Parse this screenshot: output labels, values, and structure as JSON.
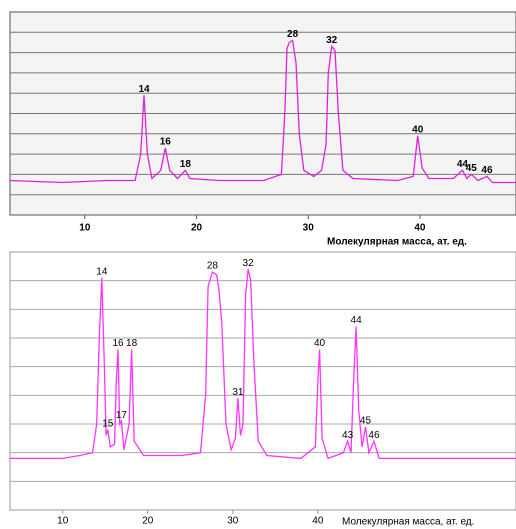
{
  "chart_data": [
    {
      "type": "line",
      "color": "#e020e0",
      "xlabel": "Молекулярная масса, ат. ед.",
      "xlim": [
        3.3,
        48.6
      ],
      "xticks": [
        10,
        20,
        30,
        40
      ],
      "ylim": [
        0,
        10
      ],
      "grid_lines": [
        1,
        2,
        3,
        4,
        5,
        6,
        7,
        8,
        9
      ],
      "x": [
        3.3,
        8,
        12,
        14.5,
        15.0,
        15.3,
        15.6,
        16.0,
        16.8,
        17.2,
        17.6,
        18.3,
        19.0,
        19.4,
        22,
        26,
        27.6,
        27.9,
        28.1,
        28.3,
        28.6,
        28.9,
        29.2,
        29.6,
        30.5,
        31.2,
        31.6,
        31.8,
        32.1,
        32.4,
        32.7,
        33.1,
        34,
        38,
        39.4,
        39.8,
        40.2,
        40.8,
        43,
        43.8,
        44.2,
        44.6,
        45.2,
        46.0,
        46.5,
        48.6
      ],
      "values": [
        1.7,
        1.6,
        1.7,
        1.7,
        3,
        5.9,
        3,
        1.8,
        2.2,
        3.3,
        2.2,
        1.8,
        2.2,
        1.8,
        1.7,
        1.7,
        2.0,
        5,
        8.2,
        8.5,
        8.6,
        7.5,
        4,
        2.2,
        1.9,
        2.2,
        3.5,
        7,
        8.3,
        8.1,
        5,
        2.2,
        1.8,
        1.7,
        1.9,
        3.9,
        2.3,
        1.8,
        1.8,
        2.2,
        1.8,
        2.0,
        1.7,
        1.9,
        1.6,
        1.6
      ],
      "annotations": [
        {
          "text": "14",
          "x": 15.3,
          "y": 5.9
        },
        {
          "text": "16",
          "x": 17.2,
          "y": 3.3
        },
        {
          "text": "18",
          "x": 19.0,
          "y": 2.2
        },
        {
          "text": "28",
          "x": 28.6,
          "y": 8.6
        },
        {
          "text": "32",
          "x": 32.1,
          "y": 8.3
        },
        {
          "text": "40",
          "x": 39.8,
          "y": 3.9
        },
        {
          "text": "44",
          "x": 43.8,
          "y": 2.2
        },
        {
          "text": "45",
          "x": 44.6,
          "y": 2.0
        },
        {
          "text": "46",
          "x": 46.0,
          "y": 1.9
        }
      ]
    },
    {
      "type": "line",
      "color": "#ff33ff",
      "xlabel": "Молекулярная масса, ат. ед.",
      "xlim": [
        3.8,
        63.3
      ],
      "xticks": [
        10,
        20,
        30,
        40
      ],
      "ylim": [
        0,
        9
      ],
      "grid_lines": [
        1,
        2,
        3,
        4,
        5,
        6,
        7,
        8
      ],
      "x": [
        3.8,
        10,
        12,
        13.5,
        14.0,
        14.3,
        14.6,
        14.9,
        15.1,
        15.3,
        15.6,
        16.1,
        16.3,
        16.5,
        16.7,
        16.9,
        17.2,
        17.8,
        18.1,
        18.4,
        19.5,
        24,
        26.2,
        26.8,
        27.1,
        27.6,
        28.1,
        28.4,
        28.7,
        29.2,
        29.8,
        30.3,
        30.6,
        30.9,
        31.2,
        31.5,
        31.8,
        32.1,
        32.5,
        33,
        34,
        38,
        39.7,
        40.0,
        40.2,
        40.5,
        41.2,
        43,
        43.5,
        43.9,
        44.2,
        44.5,
        44.8,
        45.2,
        45.6,
        46.0,
        46.6,
        47.2,
        55,
        63.3
      ],
      "values": [
        1.8,
        1.8,
        1.9,
        2.0,
        3,
        6,
        8.1,
        5,
        2.6,
        2.8,
        2.2,
        2.3,
        4.5,
        5.6,
        3,
        3.1,
        2.1,
        3,
        5.6,
        2.4,
        1.9,
        1.9,
        2.0,
        4,
        7.8,
        8.3,
        8.2,
        7.6,
        6.5,
        3,
        2.1,
        2.5,
        3.9,
        2.6,
        3,
        7.5,
        8.4,
        8.0,
        5,
        2.4,
        1.9,
        1.8,
        2.2,
        4.5,
        5.6,
        2.5,
        1.8,
        2.0,
        2.4,
        2.0,
        4.5,
        6.4,
        3.5,
        2.2,
        2.9,
        2.0,
        2.4,
        1.8,
        1.8,
        1.8
      ],
      "annotations": [
        {
          "text": "14",
          "x": 14.6,
          "y": 8.1
        },
        {
          "text": "15",
          "x": 15.3,
          "y": 2.8
        },
        {
          "text": "16",
          "x": 16.5,
          "y": 5.6
        },
        {
          "text": "17",
          "x": 16.9,
          "y": 3.1
        },
        {
          "text": "18",
          "x": 18.1,
          "y": 5.6
        },
        {
          "text": "28",
          "x": 27.6,
          "y": 8.3
        },
        {
          "text": "31",
          "x": 30.6,
          "y": 3.9
        },
        {
          "text": "32",
          "x": 31.8,
          "y": 8.4
        },
        {
          "text": "40",
          "x": 40.2,
          "y": 5.6
        },
        {
          "text": "43",
          "x": 43.5,
          "y": 2.4
        },
        {
          "text": "44",
          "x": 44.5,
          "y": 6.4
        },
        {
          "text": "45",
          "x": 45.6,
          "y": 2.9
        },
        {
          "text": "46",
          "x": 46.6,
          "y": 2.4
        }
      ]
    }
  ]
}
